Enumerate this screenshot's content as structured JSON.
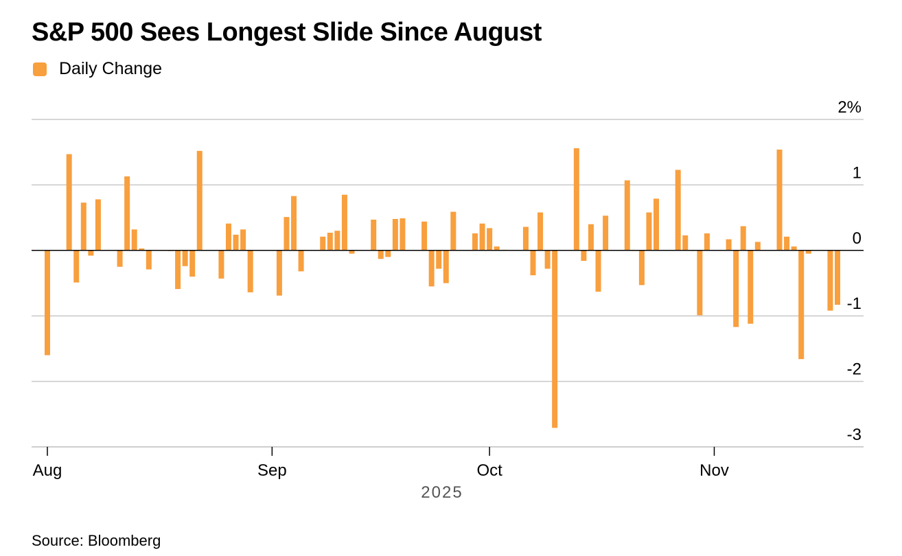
{
  "title": "S&P 500 Sees Longest Slide Since August",
  "source": "Source: Bloomberg",
  "colors": {
    "bar": "#F89F3E",
    "grid": "#C8C8C8",
    "zero": "#000000",
    "text": "#000000",
    "year_text": "#555555"
  },
  "chart_data": {
    "type": "bar",
    "title": "S&P 500 Sees Longest Slide Since August",
    "xlabel": "2025",
    "ylabel": "",
    "ylim": [
      -3,
      2
    ],
    "y_ticks": [
      {
        "value": 2,
        "label": "2%"
      },
      {
        "value": 1,
        "label": "1"
      },
      {
        "value": 0,
        "label": "0"
      },
      {
        "value": -1,
        "label": "-1"
      },
      {
        "value": -2,
        "label": "-2"
      },
      {
        "value": -3,
        "label": "-3"
      }
    ],
    "x_ticks": [
      {
        "date": "2025-08-01",
        "label": "Aug"
      },
      {
        "date": "2025-09-01",
        "label": "Sep"
      },
      {
        "date": "2025-10-01",
        "label": "Oct"
      },
      {
        "date": "2025-11-01",
        "label": "Nov"
      }
    ],
    "x_range": [
      "2025-07-31",
      "2025-11-18"
    ],
    "grid": true,
    "legend_position": "top-left",
    "series": [
      {
        "name": "Daily Change",
        "color": "#F89F3E",
        "points": [
          {
            "date": "2025-08-01",
            "value": -1.6
          },
          {
            "date": "2025-08-04",
            "value": 1.47
          },
          {
            "date": "2025-08-05",
            "value": -0.49
          },
          {
            "date": "2025-08-06",
            "value": 0.73
          },
          {
            "date": "2025-08-07",
            "value": -0.08
          },
          {
            "date": "2025-08-08",
            "value": 0.78
          },
          {
            "date": "2025-08-11",
            "value": -0.25
          },
          {
            "date": "2025-08-12",
            "value": 1.13
          },
          {
            "date": "2025-08-13",
            "value": 0.32
          },
          {
            "date": "2025-08-14",
            "value": 0.03
          },
          {
            "date": "2025-08-15",
            "value": -0.29
          },
          {
            "date": "2025-08-18",
            "value": -0.01
          },
          {
            "date": "2025-08-19",
            "value": -0.59
          },
          {
            "date": "2025-08-20",
            "value": -0.24
          },
          {
            "date": "2025-08-21",
            "value": -0.4
          },
          {
            "date": "2025-08-22",
            "value": 1.52
          },
          {
            "date": "2025-08-25",
            "value": -0.43
          },
          {
            "date": "2025-08-26",
            "value": 0.41
          },
          {
            "date": "2025-08-27",
            "value": 0.24
          },
          {
            "date": "2025-08-28",
            "value": 0.32
          },
          {
            "date": "2025-08-29",
            "value": -0.64
          },
          {
            "date": "2025-09-02",
            "value": -0.69
          },
          {
            "date": "2025-09-03",
            "value": 0.51
          },
          {
            "date": "2025-09-04",
            "value": 0.83
          },
          {
            "date": "2025-09-05",
            "value": -0.32
          },
          {
            "date": "2025-09-08",
            "value": 0.21
          },
          {
            "date": "2025-09-09",
            "value": 0.27
          },
          {
            "date": "2025-09-10",
            "value": 0.3
          },
          {
            "date": "2025-09-11",
            "value": 0.85
          },
          {
            "date": "2025-09-12",
            "value": -0.05
          },
          {
            "date": "2025-09-15",
            "value": 0.47
          },
          {
            "date": "2025-09-16",
            "value": -0.13
          },
          {
            "date": "2025-09-17",
            "value": -0.1
          },
          {
            "date": "2025-09-18",
            "value": 0.48
          },
          {
            "date": "2025-09-19",
            "value": 0.49
          },
          {
            "date": "2025-09-22",
            "value": 0.44
          },
          {
            "date": "2025-09-23",
            "value": -0.55
          },
          {
            "date": "2025-09-24",
            "value": -0.28
          },
          {
            "date": "2025-09-25",
            "value": -0.5
          },
          {
            "date": "2025-09-26",
            "value": 0.59
          },
          {
            "date": "2025-09-29",
            "value": 0.26
          },
          {
            "date": "2025-09-30",
            "value": 0.41
          },
          {
            "date": "2025-10-01",
            "value": 0.34
          },
          {
            "date": "2025-10-02",
            "value": 0.06
          },
          {
            "date": "2025-10-03",
            "value": 0.01
          },
          {
            "date": "2025-10-06",
            "value": 0.36
          },
          {
            "date": "2025-10-07",
            "value": -0.38
          },
          {
            "date": "2025-10-08",
            "value": 0.58
          },
          {
            "date": "2025-10-09",
            "value": -0.28
          },
          {
            "date": "2025-10-10",
            "value": -2.71
          },
          {
            "date": "2025-10-13",
            "value": 1.56
          },
          {
            "date": "2025-10-14",
            "value": -0.16
          },
          {
            "date": "2025-10-15",
            "value": 0.4
          },
          {
            "date": "2025-10-16",
            "value": -0.63
          },
          {
            "date": "2025-10-17",
            "value": 0.53
          },
          {
            "date": "2025-10-20",
            "value": 1.07
          },
          {
            "date": "2025-10-21",
            "value": 0.0
          },
          {
            "date": "2025-10-22",
            "value": -0.53
          },
          {
            "date": "2025-10-23",
            "value": 0.58
          },
          {
            "date": "2025-10-24",
            "value": 0.79
          },
          {
            "date": "2025-10-27",
            "value": 1.23
          },
          {
            "date": "2025-10-28",
            "value": 0.23
          },
          {
            "date": "2025-10-29",
            "value": 0.0
          },
          {
            "date": "2025-10-30",
            "value": -0.99
          },
          {
            "date": "2025-10-31",
            "value": 0.26
          },
          {
            "date": "2025-11-03",
            "value": 0.17
          },
          {
            "date": "2025-11-04",
            "value": -1.17
          },
          {
            "date": "2025-11-05",
            "value": 0.37
          },
          {
            "date": "2025-11-06",
            "value": -1.12
          },
          {
            "date": "2025-11-07",
            "value": 0.13
          },
          {
            "date": "2025-11-10",
            "value": 1.54
          },
          {
            "date": "2025-11-11",
            "value": 0.21
          },
          {
            "date": "2025-11-12",
            "value": 0.06
          },
          {
            "date": "2025-11-13",
            "value": -1.66
          },
          {
            "date": "2025-11-14",
            "value": -0.05
          },
          {
            "date": "2025-11-17",
            "value": -0.92
          },
          {
            "date": "2025-11-18",
            "value": -0.83
          }
        ]
      }
    ]
  }
}
